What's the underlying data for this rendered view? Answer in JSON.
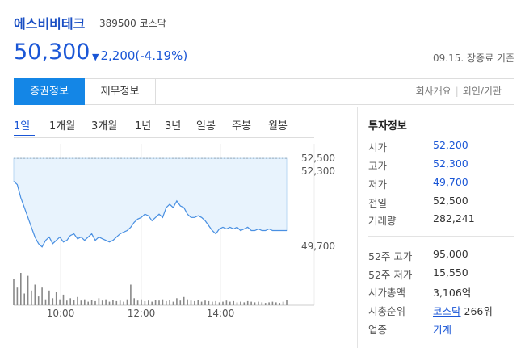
{
  "header": {
    "company_name": "에스비비테크",
    "stock_code": "389500",
    "market": "코스닥",
    "price": "50,300",
    "change_arrow": "▼",
    "change": "2,200(-4.19%)",
    "as_of": "09.15. 장종료 기준"
  },
  "tabs": {
    "active": "증권정보",
    "financial": "재무정보",
    "link_company": "회사개요",
    "link_foreign": "외인/기관"
  },
  "period_tabs": [
    "1일",
    "1개월",
    "3개월",
    "1년",
    "3년",
    "일봉",
    "주봉",
    "월봉"
  ],
  "colors": {
    "accent": "#1486e6",
    "price_blue": "#1a56d6",
    "chart_line": "#4a90e2",
    "chart_fill": "#e8f3fd"
  },
  "chart_data": {
    "type": "area",
    "title": "",
    "x_tick_labels": [
      "10:00",
      "12:00",
      "14:00"
    ],
    "y_tick_labels": [
      "52,500",
      "52,300",
      "49,700"
    ],
    "reference_line": 52500,
    "ylim": [
      49500,
      52700
    ],
    "x": [
      "09:00",
      "09:05",
      "09:10",
      "09:15",
      "09:20",
      "09:25",
      "09:30",
      "09:35",
      "09:40",
      "09:45",
      "09:50",
      "09:55",
      "10:00",
      "10:05",
      "10:10",
      "10:15",
      "10:20",
      "10:25",
      "10:30",
      "10:35",
      "10:40",
      "10:45",
      "10:50",
      "10:55",
      "11:00",
      "11:05",
      "11:10",
      "11:15",
      "11:20",
      "11:25",
      "11:30",
      "11:35",
      "11:40",
      "11:45",
      "11:50",
      "11:55",
      "12:00",
      "12:05",
      "12:10",
      "12:15",
      "12:20",
      "12:25",
      "12:30",
      "12:35",
      "12:40",
      "12:45",
      "12:50",
      "12:55",
      "13:00",
      "13:05",
      "13:10",
      "13:15",
      "13:20",
      "13:25",
      "13:30",
      "13:35",
      "13:40",
      "13:45",
      "13:50",
      "13:55",
      "14:00",
      "14:05",
      "14:10",
      "14:15",
      "14:20",
      "14:25",
      "14:30",
      "14:35",
      "14:40",
      "14:45",
      "14:50",
      "14:55",
      "15:00",
      "15:05",
      "15:10",
      "15:15",
      "15:20",
      "15:30"
    ],
    "price": [
      51800,
      51700,
      51300,
      51000,
      50700,
      50400,
      50100,
      49900,
      49800,
      50000,
      50100,
      49900,
      50000,
      50100,
      49950,
      50000,
      50150,
      50200,
      50050,
      50100,
      50000,
      50100,
      50200,
      50000,
      50100,
      50050,
      50000,
      49950,
      50000,
      50100,
      50200,
      50250,
      50300,
      50400,
      50550,
      50650,
      50700,
      50800,
      50750,
      50600,
      50700,
      50800,
      50700,
      51000,
      51100,
      51000,
      51200,
      51050,
      51000,
      50800,
      50700,
      50700,
      50750,
      50700,
      50600,
      50450,
      50300,
      50200,
      50350,
      50400,
      50350,
      50400,
      50350,
      50400,
      50300,
      50350,
      50400,
      50300,
      50300,
      50350,
      50300,
      50300,
      50350,
      50300,
      50300,
      50300,
      50300,
      50300
    ],
    "volume": [
      45,
      30,
      55,
      20,
      50,
      25,
      35,
      15,
      30,
      10,
      25,
      12,
      22,
      10,
      18,
      8,
      12,
      9,
      14,
      8,
      10,
      6,
      9,
      7,
      12,
      8,
      10,
      6,
      9,
      7,
      8,
      6,
      10,
      35,
      12,
      8,
      10,
      7,
      8,
      6,
      9,
      8,
      10,
      7,
      9,
      6,
      12,
      8,
      14,
      10,
      8,
      7,
      9,
      6,
      8,
      7,
      6,
      7,
      5,
      6,
      8,
      6,
      7,
      5,
      6,
      5,
      7,
      6,
      5,
      6,
      5,
      4,
      5,
      6,
      5,
      4,
      6,
      9
    ]
  },
  "invest_info": {
    "title": "투자정보",
    "rows_top": [
      {
        "label": "시가",
        "value": "52,200",
        "blue": true
      },
      {
        "label": "고가",
        "value": "52,300",
        "blue": true
      },
      {
        "label": "저가",
        "value": "49,700",
        "blue": true
      },
      {
        "label": "전일",
        "value": "52,500",
        "blue": false
      },
      {
        "label": "거래량",
        "value": "282,241",
        "blue": false
      }
    ],
    "rows_bottom": {
      "high52": {
        "label": "52주 고가",
        "value": "95,000"
      },
      "low52": {
        "label": "52주 저가",
        "value": "15,550"
      },
      "mcap": {
        "label": "시가총액",
        "value": "3,106억"
      },
      "rank": {
        "label": "시총순위",
        "market_link": "코스닥",
        "rank": "266위"
      },
      "industry": {
        "label": "업종",
        "value": "기계"
      }
    }
  }
}
